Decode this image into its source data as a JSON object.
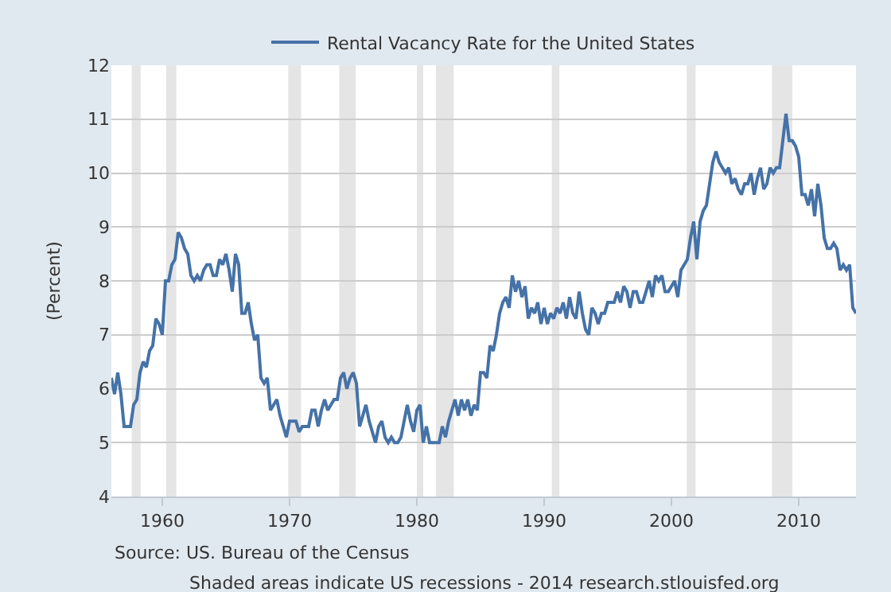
{
  "chart_data": {
    "type": "line",
    "ylabel": "(Percent)",
    "series": [
      {
        "name": "Rental Vacancy Rate for the United States",
        "color": "#4572a7",
        "x": [
          1956.0,
          1956.25,
          1956.5,
          1956.75,
          1957.0,
          1957.5,
          1957.75,
          1958.0,
          1958.25,
          1958.5,
          1958.75,
          1959.0,
          1959.25,
          1959.5,
          1959.75,
          1960.0,
          1960.25,
          1960.5,
          1960.75,
          1961.0,
          1961.25,
          1961.5,
          1961.75,
          1962.0,
          1962.25,
          1962.5,
          1962.75,
          1963.0,
          1963.25,
          1963.5,
          1963.75,
          1964.0,
          1964.25,
          1964.5,
          1964.75,
          1965.0,
          1965.25,
          1965.5,
          1965.75,
          1966.0,
          1966.25,
          1966.5,
          1966.75,
          1967.0,
          1967.25,
          1967.5,
          1967.75,
          1968.0,
          1968.25,
          1968.5,
          1968.75,
          1969.0,
          1969.25,
          1969.5,
          1969.75,
          1970.0,
          1970.5,
          1970.75,
          1971.0,
          1971.5,
          1971.75,
          1972.0,
          1972.25,
          1972.5,
          1972.75,
          1973.0,
          1973.5,
          1973.75,
          1974.0,
          1974.25,
          1974.5,
          1974.75,
          1975.0,
          1975.25,
          1975.5,
          1975.75,
          1976.0,
          1976.25,
          1976.5,
          1976.75,
          1977.0,
          1977.25,
          1977.5,
          1977.75,
          1978.0,
          1978.25,
          1978.5,
          1978.75,
          1979.0,
          1979.25,
          1979.5,
          1979.75,
          1980.0,
          1980.25,
          1980.5,
          1980.75,
          1981.0,
          1981.5,
          1981.75,
          1982.0,
          1982.25,
          1982.5,
          1982.75,
          1983.0,
          1983.25,
          1983.5,
          1983.75,
          1984.0,
          1984.25,
          1984.5,
          1984.75,
          1985.0,
          1985.25,
          1985.5,
          1985.75,
          1986.0,
          1986.25,
          1986.5,
          1986.75,
          1987.0,
          1987.25,
          1987.5,
          1987.75,
          1988.0,
          1988.25,
          1988.5,
          1988.75,
          1989.0,
          1989.25,
          1989.5,
          1989.75,
          1990.0,
          1990.25,
          1990.5,
          1990.75,
          1991.0,
          1991.25,
          1991.5,
          1991.75,
          1992.0,
          1992.25,
          1992.5,
          1992.75,
          1993.0,
          1993.25,
          1993.5,
          1993.75,
          1994.0,
          1994.25,
          1994.5,
          1994.75,
          1995.0,
          1995.25,
          1995.5,
          1995.75,
          1996.0,
          1996.25,
          1996.5,
          1996.75,
          1997.0,
          1997.25,
          1997.5,
          1997.75,
          1998.0,
          1998.25,
          1998.5,
          1998.75,
          1999.0,
          1999.25,
          1999.5,
          1999.75,
          2000.0,
          2000.25,
          2000.5,
          2000.75,
          2001.0,
          2001.25,
          2001.5,
          2001.75,
          2002.0,
          2002.25,
          2002.5,
          2002.75,
          2003.0,
          2003.25,
          2003.5,
          2003.75,
          2004.0,
          2004.25,
          2004.5,
          2004.75,
          2005.0,
          2005.25,
          2005.5,
          2005.75,
          2006.0,
          2006.25,
          2006.5,
          2006.75,
          2007.0,
          2007.25,
          2007.5,
          2007.75,
          2008.0,
          2008.25,
          2008.5,
          2008.75,
          2009.0,
          2009.25,
          2009.5,
          2009.75,
          2010.0,
          2010.25,
          2010.5,
          2010.75,
          2011.0,
          2011.25,
          2011.5,
          2011.75,
          2012.0,
          2012.25,
          2012.5,
          2012.75,
          2013.0,
          2013.25,
          2013.5,
          2013.75,
          2014.0,
          2014.25,
          2014.5
        ],
        "values": [
          6.2,
          5.9,
          6.3,
          5.9,
          5.3,
          5.3,
          5.7,
          5.8,
          6.3,
          6.5,
          6.4,
          6.7,
          6.8,
          7.3,
          7.2,
          7.0,
          8.0,
          8.0,
          8.3,
          8.4,
          8.9,
          8.8,
          8.6,
          8.5,
          8.1,
          8.0,
          8.1,
          8.0,
          8.2,
          8.3,
          8.3,
          8.1,
          8.1,
          8.4,
          8.3,
          8.5,
          8.2,
          7.8,
          8.5,
          8.3,
          7.4,
          7.4,
          7.6,
          7.2,
          6.9,
          7.0,
          6.2,
          6.1,
          6.2,
          5.6,
          5.7,
          5.8,
          5.5,
          5.3,
          5.1,
          5.4,
          5.4,
          5.2,
          5.3,
          5.3,
          5.6,
          5.6,
          5.3,
          5.6,
          5.8,
          5.6,
          5.8,
          5.8,
          6.2,
          6.3,
          6.0,
          6.2,
          6.3,
          6.1,
          5.3,
          5.5,
          5.7,
          5.4,
          5.2,
          5.0,
          5.3,
          5.4,
          5.1,
          5.0,
          5.1,
          5.0,
          5.0,
          5.1,
          5.4,
          5.7,
          5.4,
          5.2,
          5.6,
          5.7,
          5.0,
          5.3,
          5.0,
          5.0,
          5.0,
          5.3,
          5.1,
          5.4,
          5.6,
          5.8,
          5.5,
          5.8,
          5.6,
          5.8,
          5.5,
          5.7,
          5.6,
          6.3,
          6.3,
          6.2,
          6.8,
          6.7,
          7.0,
          7.4,
          7.6,
          7.7,
          7.5,
          8.1,
          7.8,
          8.0,
          7.7,
          7.9,
          7.3,
          7.5,
          7.4,
          7.6,
          7.2,
          7.5,
          7.2,
          7.4,
          7.3,
          7.5,
          7.4,
          7.6,
          7.3,
          7.7,
          7.4,
          7.3,
          7.8,
          7.4,
          7.1,
          7.0,
          7.5,
          7.4,
          7.2,
          7.4,
          7.4,
          7.6,
          7.6,
          7.6,
          7.8,
          7.6,
          7.9,
          7.8,
          7.5,
          7.8,
          7.8,
          7.6,
          7.6,
          7.8,
          8.0,
          7.7,
          8.1,
          8.0,
          8.1,
          7.8,
          7.8,
          7.9,
          8.0,
          7.7,
          8.2,
          8.3,
          8.4,
          8.8,
          9.1,
          8.4,
          9.1,
          9.3,
          9.4,
          9.8,
          10.2,
          10.4,
          10.2,
          10.1,
          10.0,
          10.1,
          9.8,
          9.9,
          9.7,
          9.6,
          9.8,
          9.8,
          10.0,
          9.6,
          9.9,
          10.1,
          9.7,
          9.8,
          10.1,
          10.0,
          10.1,
          10.1,
          10.6,
          11.1,
          10.6,
          10.6,
          10.5,
          10.3,
          9.6,
          9.6,
          9.4,
          9.7,
          9.2,
          9.8,
          9.4,
          8.8,
          8.6,
          8.6,
          8.7,
          8.6,
          8.2,
          8.3,
          8.2,
          8.3,
          7.5,
          7.4
        ]
      }
    ],
    "xlim": [
      1956,
      2014.5
    ],
    "xticks": [
      1960,
      1970,
      1980,
      1990,
      2000,
      2010
    ],
    "ylim": [
      4,
      12
    ],
    "yticks": [
      4,
      5,
      6,
      7,
      8,
      9,
      10,
      11,
      12
    ],
    "grid": "y",
    "legend": "top",
    "marker": "none",
    "line_style": "solid",
    "bands": [
      {
        "axis": "x",
        "from": 1957.6,
        "to": 1958.3,
        "color": "#e5e5e5"
      },
      {
        "axis": "x",
        "from": 1960.3,
        "to": 1961.1,
        "color": "#e5e5e5"
      },
      {
        "axis": "x",
        "from": 1969.9,
        "to": 1970.9,
        "color": "#e5e5e5"
      },
      {
        "axis": "x",
        "from": 1973.9,
        "to": 1975.2,
        "color": "#e5e5e5"
      },
      {
        "axis": "x",
        "from": 1980.0,
        "to": 1980.5,
        "color": "#e5e5e5"
      },
      {
        "axis": "x",
        "from": 1981.5,
        "to": 1982.9,
        "color": "#e5e5e5"
      },
      {
        "axis": "x",
        "from": 1990.6,
        "to": 1991.2,
        "color": "#e5e5e5"
      },
      {
        "axis": "x",
        "from": 2001.2,
        "to": 2001.9,
        "color": "#e5e5e5"
      },
      {
        "axis": "x",
        "from": 2007.9,
        "to": 2009.5,
        "color": "#e5e5e5"
      }
    ],
    "annotations": [
      "Source: US. Bureau of the Census",
      "Shaded areas indicate US recessions - 2014 research.stlouisfed.org"
    ]
  }
}
